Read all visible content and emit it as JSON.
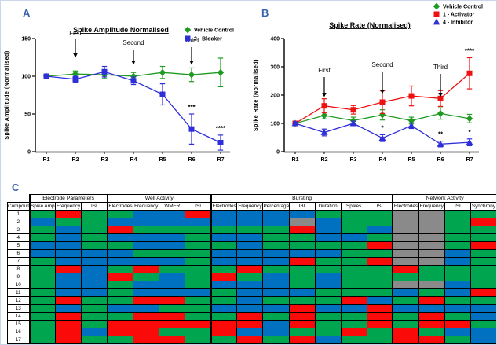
{
  "panels": {
    "a": "A",
    "b": "B",
    "c": "C"
  },
  "chart_data": [
    {
      "id": "A",
      "type": "line",
      "title": "Spike Amplitude Normalised",
      "xlabel": "",
      "ylabel": "Spike Amplitude (Normalised)",
      "x": [
        "R1",
        "R2",
        "R3",
        "R4",
        "R5",
        "R6",
        "R7"
      ],
      "ylim": [
        0,
        150
      ],
      "yticks": [
        0,
        50,
        100,
        150
      ],
      "grid": false,
      "title_y": 40,
      "legend_pos": {
        "x": 238,
        "y": 37,
        "dy": 11
      },
      "series": [
        {
          "name": "Vehicle Control",
          "color": "#1e9b20",
          "marker": "diamond",
          "values": [
            100,
            103,
            102,
            100,
            105,
            102,
            105
          ],
          "err": [
            3,
            4,
            5,
            5,
            8,
            9,
            19
          ]
        },
        {
          "name": "2 - Blocker",
          "color": "#2f2fd9",
          "marker": "square",
          "values": [
            100,
            96,
            106,
            94,
            76,
            30,
            12
          ],
          "err": [
            3,
            4,
            7,
            5,
            14,
            20,
            10
          ]
        }
      ],
      "annotations": [
        {
          "label": "First",
          "x": "R2",
          "text_y": 44,
          "arrow_y1": 49,
          "arrow_y2": 71
        },
        {
          "label": "Second",
          "x": "R4",
          "text_y": 56,
          "arrow_y1": 62,
          "arrow_y2": 80
        },
        {
          "label": "Third",
          "x": "R6",
          "text_y": 53,
          "arrow_y1": 59,
          "arrow_y2": 80
        }
      ],
      "significance": [
        {
          "x": "R6",
          "series": 1,
          "text": "***"
        },
        {
          "x": "R7",
          "series": 1,
          "text": "****"
        }
      ]
    },
    {
      "id": "B",
      "type": "line",
      "title": "Spike Rate (Normalised)",
      "xlabel": "",
      "ylabel": "Spike Rate (Normalised)",
      "x": [
        "R1",
        "R2",
        "R3",
        "R4",
        "R5",
        "R6",
        "R7"
      ],
      "ylim": [
        0,
        400
      ],
      "yticks": [
        0,
        100,
        200,
        300,
        400
      ],
      "grid": false,
      "title_y": 34,
      "legend_pos": {
        "x": 238,
        "y": 7,
        "dy": 10
      },
      "series": [
        {
          "name": "Vehicle Control",
          "color": "#1e9b20",
          "marker": "diamond",
          "values": [
            100,
            128,
            110,
            130,
            110,
            135,
            117
          ],
          "err": [
            5,
            12,
            12,
            18,
            12,
            20,
            15
          ]
        },
        {
          "name": "1 - Activator",
          "color": "#ee1111",
          "marker": "square",
          "values": [
            100,
            162,
            148,
            175,
            197,
            188,
            277
          ],
          "err": [
            5,
            25,
            15,
            40,
            35,
            28,
            55
          ]
        },
        {
          "name": "4 - Inhibitor",
          "color": "#2f2fd9",
          "marker": "triangle",
          "values": [
            100,
            68,
            100,
            48,
            92,
            27,
            33
          ],
          "err": [
            5,
            12,
            8,
            12,
            10,
            10,
            12
          ]
        }
      ],
      "annotations": [
        {
          "label": "First",
          "x": "R2",
          "text_y": 91,
          "arrow_y1": 97,
          "arrow_y2": 121
        },
        {
          "label": "Second",
          "x": "R4",
          "text_y": 84,
          "arrow_y1": 90,
          "arrow_y2": 117
        },
        {
          "label": "Third",
          "x": "R6",
          "text_y": 87,
          "arrow_y1": 93,
          "arrow_y2": 121
        }
      ],
      "significance": [
        {
          "x": "R4",
          "series": 2,
          "text": "*"
        },
        {
          "x": "R6",
          "series": 2,
          "text": "**"
        },
        {
          "x": "R7",
          "series": 2,
          "text": "*"
        },
        {
          "x": "R7",
          "series": 1,
          "text": "****"
        }
      ]
    },
    {
      "id": "C",
      "type": "heatmap",
      "row_header": "Compound",
      "groups": [
        {
          "label": "Electrode Parameters",
          "span": 3
        },
        {
          "label": "Well Activity",
          "span": 4
        },
        {
          "label": "Bursting",
          "span": 7
        },
        {
          "label": "Network Activity",
          "span": 4
        }
      ],
      "columns": [
        "Spike Amp",
        "Frequency",
        "ISI",
        "Electrodes",
        "Frequency",
        "WMFR",
        "ISI",
        "Electrodes",
        "Frequency",
        "Percentage",
        "IBI",
        "Duration",
        "Spikes",
        "ISI",
        "Electrodes",
        "Frequency",
        "ISI",
        "Synchrony"
      ],
      "rows": [
        "1",
        "2",
        "3",
        "4",
        "5",
        "6",
        "7",
        "8",
        "9",
        "10",
        "11",
        "12",
        "13",
        "14",
        "15",
        "16",
        "17"
      ],
      "color_map": {
        "G": "#00a54f",
        "B": "#0070c0",
        "R": "#fb0a0a",
        "X": "#8a8a8a"
      },
      "cells": [
        "GRGGBBRBBBBGGGXXGG",
        "BGGBBBBBBBXBGGXXGR",
        "GBGRGGGGGGRBGBXXGG",
        "GBGBBBGBBGGBBGXXGG",
        "BBGGBBGGBGGGGRXXGR",
        "BBBBGGGBBBBBGGXXBG",
        "GBBBBBGBBBRGGRXXBG",
        "GRBGRGGGRGGGGGRGGG",
        "GBBRGBGRGBGBGGGGGG",
        "GBBGBBGBBBGBGGXXBG",
        "GBBGBBBGBBBGGGBGBR",
        "GRGGRRGGBGGGRBGRGG",
        "GBGBBGGBBBRBBRBBBB",
        "GRGGRRGGRGRGGRGRGB",
        "GRGRRRRRRBRGGRGRRG",
        "GRBRRGGRBBGGRGRGBB",
        "GRGGRRGGRGRBGGRRGB"
      ]
    }
  ]
}
